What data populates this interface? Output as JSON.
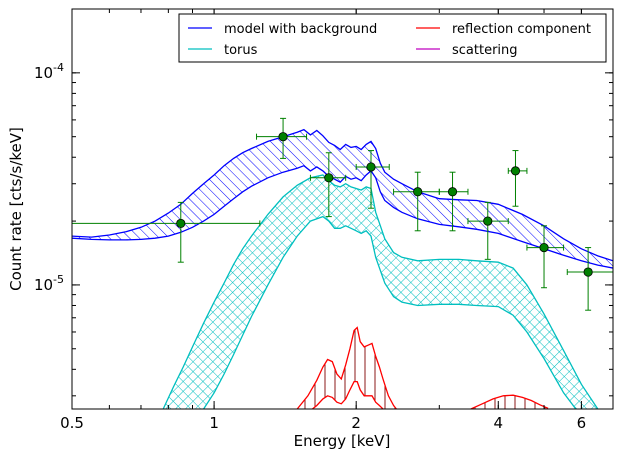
{
  "chart_data": {
    "type": "line",
    "xlabel": "Energy [keV]",
    "ylabel": "Count rate [cts/s/keV]",
    "xscale": "log",
    "yscale": "log",
    "xlim": [
      0.5,
      7.0
    ],
    "ylim": [
      2.6e-06,
      0.0002
    ],
    "grid": false,
    "legend_placement": "top-right",
    "x_ticks": [
      {
        "value": 0.5,
        "label": "0.5"
      },
      {
        "value": 1,
        "label": "1"
      },
      {
        "value": 2,
        "label": "2"
      },
      {
        "value": 4,
        "label": "4"
      },
      {
        "value": 6,
        "label": "6"
      }
    ],
    "y_ticks": [
      {
        "value": 0.0001,
        "base": "10",
        "exp": "-4"
      },
      {
        "value": 1e-05,
        "base": "10",
        "exp": "-5"
      }
    ],
    "legend": [
      {
        "label": "model with background",
        "color": "#0000ff"
      },
      {
        "label": "reflection component",
        "color": "#ff0000"
      },
      {
        "label": "torus",
        "color": "#00bfbf"
      },
      {
        "label": "scattering",
        "color": "#bf00bf"
      }
    ],
    "series": [
      {
        "name": "model with background",
        "color": "#0000ff",
        "hatch": "diagonal",
        "x": [
          0.5,
          0.55,
          0.6,
          0.65,
          0.7,
          0.75,
          0.8,
          0.85,
          0.9,
          0.95,
          1.0,
          1.05,
          1.1,
          1.15,
          1.2,
          1.3,
          1.4,
          1.5,
          1.55,
          1.6,
          1.65,
          1.7,
          1.75,
          1.8,
          1.85,
          1.9,
          1.95,
          2.0,
          2.05,
          2.1,
          2.15,
          2.2,
          2.25,
          2.3,
          2.4,
          2.5,
          2.7,
          3.0,
          3.3,
          3.6,
          4.0,
          4.5,
          5.0,
          5.5,
          6.0,
          6.5,
          7.0
        ],
        "upper": [
          1.7e-05,
          1.68e-05,
          1.72e-05,
          1.78e-05,
          1.87e-05,
          2e-05,
          2.18e-05,
          2.4e-05,
          2.7e-05,
          3e-05,
          3.3e-05,
          3.65e-05,
          3.95e-05,
          4.2e-05,
          4.4e-05,
          4.75e-05,
          5e-05,
          5.25e-05,
          5.4e-05,
          5.1e-05,
          5.35e-05,
          5.05e-05,
          4.7e-05,
          4.55e-05,
          4.35e-05,
          4.6e-05,
          4.45e-05,
          4.5e-05,
          4.35e-05,
          4.6e-05,
          4.75e-05,
          4.4e-05,
          3.75e-05,
          3.4e-05,
          3.15e-05,
          3e-05,
          2.75e-05,
          2.55e-05,
          2.52e-05,
          2.5e-05,
          2.4e-05,
          2.15e-05,
          1.9e-05,
          1.65e-05,
          1.48e-05,
          1.37e-05,
          1.3e-05
        ],
        "lower": [
          1.66e-05,
          1.64e-05,
          1.63e-05,
          1.63e-05,
          1.64e-05,
          1.66e-05,
          1.7e-05,
          1.77e-05,
          1.87e-05,
          2e-05,
          2.15e-05,
          2.35e-05,
          2.55e-05,
          2.75e-05,
          2.92e-05,
          3.2e-05,
          3.4e-05,
          3.55e-05,
          3.65e-05,
          3.45e-05,
          3.6e-05,
          3.45e-05,
          3.25e-05,
          3.15e-05,
          3.05e-05,
          3.25e-05,
          3.15e-05,
          3.2e-05,
          3.1e-05,
          3.3e-05,
          3.45e-05,
          3.2e-05,
          2.75e-05,
          2.5e-05,
          2.32e-05,
          2.2e-05,
          2.05e-05,
          1.93e-05,
          1.88e-05,
          1.83e-05,
          1.75e-05,
          1.6e-05,
          1.48e-05,
          1.38e-05,
          1.3e-05,
          1.24e-05,
          1.2e-05
        ]
      },
      {
        "name": "torus",
        "color": "#00bfbf",
        "hatch": "crosshatch",
        "x": [
          0.78,
          0.82,
          0.86,
          0.9,
          0.95,
          1.0,
          1.05,
          1.1,
          1.15,
          1.2,
          1.3,
          1.4,
          1.5,
          1.6,
          1.7,
          1.75,
          1.8,
          1.85,
          1.9,
          1.95,
          2.0,
          2.05,
          2.1,
          2.15,
          2.2,
          2.3,
          2.4,
          2.5,
          2.7,
          3.0,
          3.3,
          3.6,
          4.0,
          4.3,
          4.6,
          5.0,
          5.5,
          6.0,
          6.5,
          7.0
        ],
        "upper": [
          2.6e-06,
          3.3e-06,
          4.1e-06,
          5.1e-06,
          6.6e-06,
          8.3e-06,
          1.02e-05,
          1.25e-05,
          1.48e-05,
          1.7e-05,
          2.15e-05,
          2.6e-05,
          2.95e-05,
          3.2e-05,
          3.3e-05,
          3.1e-05,
          2.95e-05,
          2.9e-05,
          3e-05,
          2.9e-05,
          2.85e-05,
          2.8e-05,
          2.9e-05,
          2.85e-05,
          2.2e-05,
          1.65e-05,
          1.42e-05,
          1.35e-05,
          1.3e-05,
          1.32e-05,
          1.32e-05,
          1.3e-05,
          1.28e-05,
          1.2e-05,
          1e-05,
          7.3e-06,
          4.9e-06,
          3.4e-06,
          2.6e-06,
          2.2e-06
        ],
        "lower": [
          1.6e-06,
          1.8e-06,
          2e-06,
          2.25e-06,
          2.6e-06,
          3.1e-06,
          3.8e-06,
          4.7e-06,
          5.8e-06,
          7.1e-06,
          1e-05,
          1.35e-05,
          1.7e-05,
          2e-05,
          2.1e-05,
          2e-05,
          1.85e-05,
          1.85e-05,
          1.9e-05,
          1.85e-05,
          1.8e-05,
          1.75e-05,
          1.8e-05,
          1.7e-05,
          1.35e-05,
          1.02e-05,
          8.8e-06,
          8.3e-06,
          8e-06,
          8.1e-06,
          8.1e-06,
          8e-06,
          7.9e-06,
          7.2e-06,
          6e-06,
          4.5e-06,
          3.1e-06,
          2.4e-06,
          2e-06,
          1.8e-06
        ]
      },
      {
        "name": "reflection component",
        "color": "#ff0000",
        "hatch": "vertical",
        "x": [
          1.5,
          1.58,
          1.65,
          1.7,
          1.74,
          1.78,
          1.82,
          1.86,
          1.9,
          1.94,
          1.98,
          2.01,
          2.04,
          2.08,
          2.12,
          2.16,
          2.2,
          2.24,
          2.28,
          2.34,
          2.4,
          2.45
        ],
        "upper": [
          2.6e-06,
          3e-06,
          3.55e-06,
          4.1e-06,
          4.45e-06,
          4.35e-06,
          3.8e-06,
          3.6e-06,
          4.2e-06,
          5e-06,
          6.1e-06,
          6.3e-06,
          5.4e-06,
          5.1e-06,
          5.2e-06,
          5.3e-06,
          4.6e-06,
          4.1e-06,
          3.6e-06,
          3e-06,
          2.7e-06,
          2.55e-06
        ],
        "lower": [
          2.4e-06,
          2.5e-06,
          2.7e-06,
          2.9e-06,
          3e-06,
          2.95e-06,
          2.8e-06,
          2.75e-06,
          2.9e-06,
          3.2e-06,
          3.5e-06,
          3.5e-06,
          3.2e-06,
          3e-06,
          3e-06,
          3e-06,
          2.8e-06,
          2.7e-06,
          2.6e-06,
          2.45e-06,
          2.4e-06,
          2.4e-06
        ]
      },
      {
        "name": "reflection component",
        "color": "#ff0000",
        "hatch": "vertical",
        "x": [
          3.5,
          3.7,
          3.9,
          4.1,
          4.3,
          4.5,
          4.7,
          4.9,
          5.1
        ],
        "upper": [
          2.6e-06,
          2.75e-06,
          2.9e-06,
          3e-06,
          3.02e-06,
          2.95e-06,
          2.85e-06,
          2.72e-06,
          2.62e-06
        ],
        "lower": [
          2.4e-06,
          2.45e-06,
          2.5e-06,
          2.52e-06,
          2.52e-06,
          2.5e-06,
          2.48e-06,
          2.45e-06,
          2.42e-06
        ]
      },
      {
        "name": "data",
        "color": "#008000",
        "type": "scatter",
        "points": [
          {
            "x": 0.85,
            "y": 1.95e-05,
            "xlo": 0.5,
            "xhi": 1.25,
            "ylo": 1.28e-05,
            "yhi": 2.45e-05
          },
          {
            "x": 1.4,
            "y": 5e-05,
            "xlo": 1.23,
            "xhi": 1.57,
            "ylo": 3.95e-05,
            "yhi": 6.1e-05
          },
          {
            "x": 1.75,
            "y": 3.2e-05,
            "xlo": 1.6,
            "xhi": 1.9,
            "ylo": 2.1e-05,
            "yhi": 4.2e-05
          },
          {
            "x": 2.15,
            "y": 3.6e-05,
            "xlo": 2.0,
            "xhi": 2.35,
            "ylo": 2.3e-05,
            "yhi": 4.3e-05
          },
          {
            "x": 2.7,
            "y": 2.75e-05,
            "xlo": 2.4,
            "xhi": 3.0,
            "ylo": 1.8e-05,
            "yhi": 3.4e-05
          },
          {
            "x": 3.2,
            "y": 2.75e-05,
            "xlo": 3.0,
            "xhi": 3.45,
            "ylo": 1.8e-05,
            "yhi": 3.4e-05
          },
          {
            "x": 3.8,
            "y": 2e-05,
            "xlo": 3.45,
            "xhi": 4.2,
            "ylo": 1.32e-05,
            "yhi": 2.45e-05
          },
          {
            "x": 4.35,
            "y": 3.45e-05,
            "xlo": 4.2,
            "xhi": 4.6,
            "ylo": 2.35e-05,
            "yhi": 4.3e-05
          },
          {
            "x": 5.0,
            "y": 1.5e-05,
            "xlo": 4.6,
            "xhi": 5.5,
            "ylo": 9.7e-06,
            "yhi": 1.9e-05
          },
          {
            "x": 6.2,
            "y": 1.15e-05,
            "xlo": 5.6,
            "xhi": 7.0,
            "ylo": 7.6e-06,
            "yhi": 1.5e-05
          }
        ]
      }
    ]
  }
}
